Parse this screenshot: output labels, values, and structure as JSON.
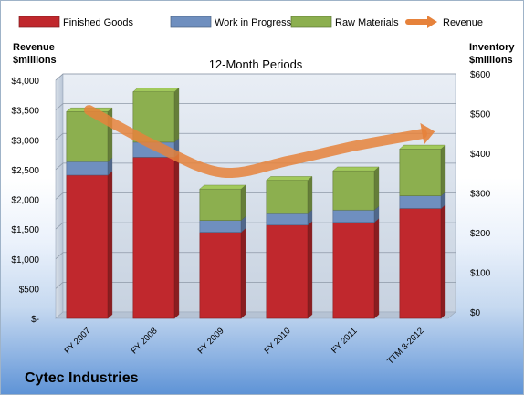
{
  "company": "Cytec Industries",
  "chart_data": {
    "type": "bar",
    "stacked": true,
    "title": "12-Month Periods",
    "left_axis_label": [
      "Revenue",
      "$millions"
    ],
    "right_axis_label": [
      "Inventory",
      "$millions"
    ],
    "categories": [
      "FY 2007",
      "FY 2008",
      "FY 2009",
      "FY 2010",
      "FY 2011",
      "TTM 3-2012"
    ],
    "series": [
      {
        "name": "Finished Goods",
        "axis": "right",
        "color": "#c0282d",
        "values": [
          361,
          406,
          217,
          235,
          242,
          277
        ]
      },
      {
        "name": "Work in Progress",
        "axis": "right",
        "color": "#6f8fbf",
        "values": [
          34,
          38,
          30,
          29,
          31,
          32
        ]
      },
      {
        "name": "Raw Materials",
        "axis": "right",
        "color": "#8caf4f",
        "values": [
          126,
          127,
          79,
          84,
          99,
          118
        ]
      },
      {
        "name": "Revenue",
        "type": "line",
        "axis": "left",
        "color": "#e6823b",
        "values": [
          3500,
          2900,
          2450,
          2650,
          2900,
          3100
        ]
      }
    ],
    "left_axis": {
      "min": 0,
      "max": 4000,
      "ticks": [
        "$-",
        "$500",
        "$1,000",
        "$1,500",
        "$2,000",
        "$2,500",
        "$3,000",
        "$3,500",
        "$4,000"
      ]
    },
    "right_axis": {
      "min": 0,
      "max": 600,
      "ticks": [
        "$0",
        "$100",
        "$200",
        "$300",
        "$400",
        "$500",
        "$600"
      ]
    },
    "legend_position": "top",
    "grid": true
  }
}
